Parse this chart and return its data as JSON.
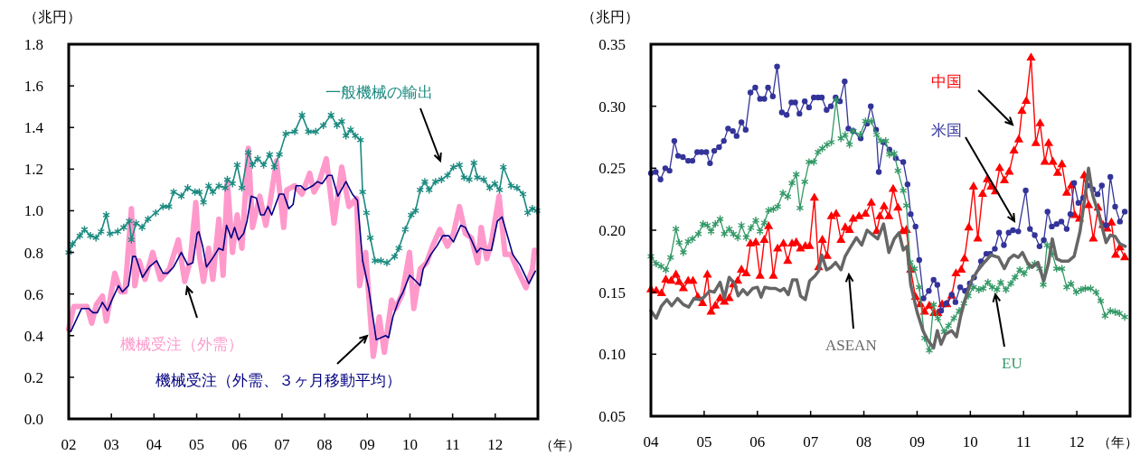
{
  "chart_data": [
    {
      "type": "line",
      "ylabel": "（兆円）",
      "xlabel": "（年）",
      "xlim": [
        2002,
        2013
      ],
      "ylim": [
        0,
        1.8
      ],
      "xticks": [
        {
          "value": 2002,
          "label": "02"
        },
        {
          "value": 2003,
          "label": "03"
        },
        {
          "value": 2004,
          "label": "04"
        },
        {
          "value": 2005,
          "label": "05"
        },
        {
          "value": 2006,
          "label": "06"
        },
        {
          "value": 2007,
          "label": "07"
        },
        {
          "value": 2008,
          "label": "08"
        },
        {
          "value": 2009,
          "label": "09"
        },
        {
          "value": 2010,
          "label": "10"
        },
        {
          "value": 2011,
          "label": "11"
        },
        {
          "value": 2012,
          "label": "12"
        }
      ],
      "yticks": [
        {
          "value": 0,
          "label": "0.0"
        },
        0.2,
        0.4,
        0.6,
        0.8,
        {
          "value": 1,
          "label": "1.0"
        },
        1.2,
        1.4,
        1.6,
        1.8
      ],
      "series": [
        {
          "name": "機械受注（外需）",
          "color": "#ff99cc",
          "marker": "none",
          "x": [
            2002.0,
            2002.12,
            2002.26,
            2002.43,
            2002.54,
            2002.65,
            2002.79,
            2002.88,
            2003.08,
            2003.22,
            2003.32,
            2003.47,
            2003.55,
            2003.65,
            2003.79,
            2003.97,
            2004.15,
            2004.36,
            2004.57,
            2004.72,
            2004.85,
            2004.98,
            2005.06,
            2005.16,
            2005.28,
            2005.38,
            2005.52,
            2005.62,
            2005.72,
            2005.84,
            2005.95,
            2006.06,
            2006.21,
            2006.31,
            2006.48,
            2006.62,
            2006.72,
            2006.87,
            2007.04,
            2007.11,
            2007.3,
            2007.47,
            2007.65,
            2007.75,
            2007.86,
            2008.04,
            2008.22,
            2008.4,
            2008.57,
            2008.75,
            2008.82,
            2008.96,
            2009.14,
            2009.28,
            2009.4,
            2009.57,
            2009.66,
            2009.82,
            2009.99,
            2010.09,
            2010.24,
            2010.39,
            2010.53,
            2010.7,
            2010.88,
            2011.02,
            2011.16,
            2011.3,
            2011.44,
            2011.59,
            2011.67,
            2011.8,
            2011.91,
            2012.09,
            2012.23,
            2012.37,
            2012.51,
            2012.72,
            2012.87,
            2012.92
          ],
          "values": [
            0.43,
            0.54,
            0.54,
            0.54,
            0.46,
            0.55,
            0.59,
            0.47,
            0.7,
            0.61,
            0.61,
            1.01,
            0.64,
            0.76,
            0.67,
            0.8,
            0.67,
            0.72,
            0.86,
            0.66,
            0.76,
            1.04,
            0.79,
            0.66,
            0.82,
            0.67,
            0.96,
            0.69,
            1.14,
            0.8,
            0.98,
            0.82,
            1.3,
            0.92,
            1.07,
            0.93,
            1.04,
            1.24,
            0.92,
            1.1,
            1.12,
            1.08,
            1.18,
            1.09,
            1.13,
            1.25,
            0.94,
            1.21,
            1.02,
            1.06,
            0.64,
            0.8,
            0.3,
            0.49,
            0.32,
            0.57,
            0.53,
            0.6,
            0.8,
            0.53,
            0.72,
            0.75,
            0.83,
            0.91,
            0.83,
            0.89,
            1.02,
            0.89,
            0.87,
            0.75,
            0.92,
            0.77,
            0.85,
            1.07,
            0.79,
            0.79,
            0.72,
            0.63,
            0.72,
            0.81
          ]
        },
        {
          "name": "機械受注（外需、３ヶ月移動平均）",
          "color": "#000080",
          "marker": "none",
          "x": [
            2002.0,
            2002.05,
            2002.3,
            2002.47,
            2002.57,
            2002.67,
            2002.79,
            2002.91,
            2003.01,
            2003.17,
            2003.26,
            2003.4,
            2003.5,
            2003.57,
            2003.73,
            2003.89,
            2004.06,
            2004.21,
            2004.32,
            2004.46,
            2004.64,
            2004.79,
            2004.91,
            2005.01,
            2005.05,
            2005.14,
            2005.23,
            2005.4,
            2005.52,
            2005.62,
            2005.7,
            2005.81,
            2005.89,
            2005.98,
            2006.1,
            2006.18,
            2006.28,
            2006.4,
            2006.5,
            2006.58,
            2006.67,
            2006.76,
            2006.94,
            2007.04,
            2007.16,
            2007.26,
            2007.33,
            2007.44,
            2007.54,
            2007.72,
            2007.83,
            2007.94,
            2008.08,
            2008.17,
            2008.31,
            2008.5,
            2008.65,
            2008.77,
            2008.89,
            2009.03,
            2009.21,
            2009.43,
            2009.5,
            2009.6,
            2009.74,
            2009.84,
            2009.99,
            2010.1,
            2010.24,
            2010.31,
            2010.49,
            2010.63,
            2010.77,
            2010.91,
            2011.02,
            2011.19,
            2011.3,
            2011.44,
            2011.57,
            2011.65,
            2011.8,
            2011.91,
            2012.05,
            2012.16,
            2012.3,
            2012.41,
            2012.58,
            2012.79,
            2012.94
          ],
          "values": [
            0.42,
            0.42,
            0.53,
            0.53,
            0.51,
            0.51,
            0.56,
            0.52,
            0.57,
            0.64,
            0.61,
            0.64,
            0.78,
            0.78,
            0.68,
            0.73,
            0.76,
            0.7,
            0.7,
            0.73,
            0.8,
            0.74,
            0.75,
            0.89,
            0.9,
            0.83,
            0.73,
            0.78,
            0.82,
            0.81,
            0.93,
            0.87,
            0.92,
            0.86,
            0.89,
            0.95,
            1.07,
            1.06,
            0.98,
            0.98,
            1.02,
            0.98,
            1.08,
            1.08,
            1.01,
            1.03,
            1.12,
            1.12,
            1.1,
            1.12,
            1.14,
            1.13,
            1.17,
            1.17,
            1.07,
            1.14,
            1.08,
            1.05,
            0.76,
            0.63,
            0.38,
            0.4,
            0.39,
            0.49,
            0.57,
            0.61,
            0.69,
            0.67,
            0.64,
            0.72,
            0.79,
            0.83,
            0.88,
            0.88,
            0.85,
            0.93,
            0.92,
            0.86,
            0.8,
            0.82,
            0.81,
            0.81,
            0.95,
            0.97,
            0.87,
            0.79,
            0.74,
            0.65,
            0.71
          ]
        },
        {
          "name": "一般機械の輸出",
          "color": "#1a8a80",
          "marker": "cross",
          "x": [
            2002.0,
            2002.09,
            2002.26,
            2002.37,
            2002.51,
            2002.64,
            2002.76,
            2002.88,
            2002.97,
            2003.15,
            2003.29,
            2003.42,
            2003.47,
            2003.58,
            2003.72,
            2003.86,
            2004.04,
            2004.21,
            2004.35,
            2004.46,
            2004.64,
            2004.79,
            2004.96,
            2005.06,
            2005.16,
            2005.28,
            2005.38,
            2005.52,
            2005.67,
            2005.72,
            2005.84,
            2005.95,
            2006.06,
            2006.21,
            2006.31,
            2006.43,
            2006.57,
            2006.71,
            2006.82,
            2006.94,
            2007.09,
            2007.3,
            2007.47,
            2007.62,
            2007.79,
            2007.97,
            2008.15,
            2008.29,
            2008.4,
            2008.5,
            2008.61,
            2008.72,
            2008.84,
            2008.89,
            2008.98,
            2009.07,
            2009.18,
            2009.32,
            2009.46,
            2009.64,
            2009.74,
            2009.89,
            2010.03,
            2010.13,
            2010.24,
            2010.35,
            2010.45,
            2010.6,
            2010.74,
            2010.88,
            2011.02,
            2011.16,
            2011.27,
            2011.39,
            2011.5,
            2011.58,
            2011.73,
            2011.87,
            2011.99,
            2012.1,
            2012.19,
            2012.37,
            2012.51,
            2012.65,
            2012.76,
            2012.87,
            2012.98
          ],
          "values": [
            0.8,
            0.84,
            0.88,
            0.91,
            0.88,
            0.87,
            0.9,
            0.98,
            0.89,
            0.9,
            0.92,
            0.95,
            0.86,
            0.94,
            0.92,
            0.96,
            0.99,
            1.02,
            1.02,
            1.09,
            1.07,
            1.11,
            1.09,
            1.09,
            1.04,
            1.12,
            1.09,
            1.12,
            1.11,
            1.15,
            1.13,
            1.22,
            1.11,
            1.28,
            1.22,
            1.25,
            1.22,
            1.27,
            1.21,
            1.27,
            1.37,
            1.38,
            1.46,
            1.38,
            1.38,
            1.41,
            1.46,
            1.41,
            1.43,
            1.36,
            1.39,
            1.36,
            1.34,
            1.09,
            0.99,
            0.87,
            0.76,
            0.76,
            0.75,
            0.78,
            0.82,
            0.91,
            0.98,
            1.0,
            1.1,
            1.14,
            1.1,
            1.14,
            1.15,
            1.17,
            1.21,
            1.22,
            1.16,
            1.15,
            1.23,
            1.16,
            1.15,
            1.11,
            1.13,
            1.1,
            1.21,
            1.12,
            1.11,
            1.08,
            0.99,
            1.01,
            1.0
          ]
        }
      ]
    },
    {
      "type": "line",
      "ylabel": "（兆円）",
      "xlabel": "（年）",
      "xlim": [
        2004,
        2013
      ],
      "ylim": [
        0.05,
        0.35
      ],
      "xticks": [
        {
          "value": 2004,
          "label": "04"
        },
        {
          "value": 2005,
          "label": "05"
        },
        {
          "value": 2006,
          "label": "06"
        },
        {
          "value": 2007,
          "label": "07"
        },
        {
          "value": 2008,
          "label": "08"
        },
        {
          "value": 2009,
          "label": "09"
        },
        {
          "value": 2010,
          "label": "10"
        },
        {
          "value": 2011,
          "label": "11"
        },
        {
          "value": 2012,
          "label": "12"
        }
      ],
      "yticks": [
        0.05,
        {
          "value": 0.1,
          "label": "0.10"
        },
        0.15,
        {
          "value": 0.2,
          "label": "0.20"
        },
        0.25,
        {
          "value": 0.3,
          "label": "0.30"
        },
        0.35
      ],
      "series": [
        {
          "name": "中国",
          "color": "#ff0000",
          "marker": "triangle",
          "x": [
            2004.0,
            2004.1,
            2004.2,
            2004.28,
            2004.38,
            2004.47,
            2004.53,
            2004.61,
            2004.7,
            2004.79,
            2004.88,
            2004.97,
            2005.06,
            2005.13,
            2005.21,
            2005.3,
            2005.38,
            2005.47,
            2005.55,
            2005.63,
            2005.7,
            2005.79,
            2005.87,
            2005.97,
            2006.05,
            2006.13,
            2006.21,
            2006.3,
            2006.38,
            2006.49,
            2006.57,
            2006.65,
            2006.73,
            2006.81,
            2006.9,
            2006.98,
            2007.07,
            2007.15,
            2007.22,
            2007.31,
            2007.39,
            2007.48,
            2007.57,
            2007.65,
            2007.73,
            2007.8,
            2007.91,
            2008.03,
            2008.14,
            2008.24,
            2008.3,
            2008.38,
            2008.47,
            2008.55,
            2008.64,
            2008.73,
            2008.8,
            2008.88,
            2008.97,
            2009.06,
            2009.14,
            2009.23,
            2009.32,
            2009.39,
            2009.47,
            2009.56,
            2009.65,
            2009.73,
            2009.83,
            2009.89,
            2009.97,
            2010.06,
            2010.14,
            2010.23,
            2010.32,
            2010.39,
            2010.47,
            2010.55,
            2010.64,
            2010.73,
            2010.82,
            2010.91,
            2010.97,
            2011.05,
            2011.14,
            2011.23,
            2011.31,
            2011.4,
            2011.47,
            2011.55,
            2011.64,
            2011.72,
            2011.81,
            2011.9,
            2011.96,
            2012.05,
            2012.14,
            2012.22,
            2012.31,
            2012.4,
            2012.49,
            2012.57,
            2012.65,
            2012.73,
            2012.81,
            2012.9
          ],
          "values": [
            0.152,
            0.151,
            0.149,
            0.16,
            0.159,
            0.164,
            0.158,
            0.153,
            0.159,
            0.159,
            0.146,
            0.141,
            0.164,
            0.134,
            0.139,
            0.145,
            0.142,
            0.145,
            0.156,
            0.159,
            0.168,
            0.165,
            0.189,
            0.19,
            0.163,
            0.192,
            0.203,
            0.163,
            0.185,
            0.189,
            0.175,
            0.189,
            0.19,
            0.185,
            0.187,
            0.187,
            0.226,
            0.17,
            0.192,
            0.179,
            0.211,
            0.213,
            0.192,
            0.202,
            0.2,
            0.209,
            0.211,
            0.213,
            0.222,
            0.199,
            0.211,
            0.219,
            0.211,
            0.233,
            0.218,
            0.199,
            0.2,
            0.168,
            0.146,
            0.14,
            0.134,
            0.139,
            0.133,
            0.133,
            0.14,
            0.14,
            0.147,
            0.165,
            0.168,
            0.177,
            0.202,
            0.235,
            0.193,
            0.229,
            0.241,
            0.235,
            0.231,
            0.25,
            0.24,
            0.247,
            0.264,
            0.273,
            0.296,
            0.304,
            0.339,
            0.27,
            0.286,
            0.255,
            0.27,
            0.255,
            0.246,
            0.253,
            0.23,
            0.236,
            0.212,
            0.209,
            0.244,
            0.22,
            0.193,
            0.218,
            0.204,
            0.201,
            0.206,
            0.18,
            0.186,
            0.178
          ]
        },
        {
          "name": "米国",
          "color": "#333399",
          "marker": "circle",
          "x": [
            2004.0,
            2004.09,
            2004.18,
            2004.27,
            2004.35,
            2004.44,
            2004.51,
            2004.6,
            2004.7,
            2004.78,
            2004.87,
            2004.95,
            2005.04,
            2005.11,
            2005.19,
            2005.28,
            2005.37,
            2005.45,
            2005.54,
            2005.61,
            2005.7,
            2005.78,
            2005.87,
            2005.96,
            2006.05,
            2006.13,
            2006.2,
            2006.29,
            2006.37,
            2006.46,
            2006.55,
            2006.64,
            2006.71,
            2006.79,
            2006.89,
            2006.97,
            2007.06,
            2007.14,
            2007.21,
            2007.3,
            2007.38,
            2007.47,
            2007.55,
            2007.64,
            2007.71,
            2007.8,
            2007.94,
            2008.06,
            2008.13,
            2008.23,
            2008.28,
            2008.37,
            2008.48,
            2008.6,
            2008.74,
            2008.82,
            2008.88,
            2008.97,
            2009.04,
            2009.12,
            2009.22,
            2009.31,
            2009.38,
            2009.45,
            2009.55,
            2009.65,
            2009.72,
            2009.81,
            2009.9,
            2009.99,
            2010.07,
            2010.2,
            2010.3,
            2010.37,
            2010.46,
            2010.54,
            2010.63,
            2010.72,
            2010.8,
            2010.9,
            2011.04,
            2011.12,
            2011.21,
            2011.3,
            2011.38,
            2011.45,
            2011.53,
            2011.62,
            2011.71,
            2011.81,
            2011.88,
            2011.95,
            2012.03,
            2012.12,
            2012.2,
            2012.3,
            2012.39,
            2012.47,
            2012.55,
            2012.63,
            2012.72,
            2012.81,
            2012.9
          ],
          "values": [
            0.246,
            0.247,
            0.241,
            0.25,
            0.248,
            0.272,
            0.26,
            0.259,
            0.256,
            0.256,
            0.263,
            0.263,
            0.263,
            0.254,
            0.264,
            0.267,
            0.272,
            0.282,
            0.28,
            0.276,
            0.287,
            0.281,
            0.311,
            0.315,
            0.306,
            0.306,
            0.315,
            0.308,
            0.332,
            0.295,
            0.293,
            0.303,
            0.303,
            0.294,
            0.304,
            0.299,
            0.307,
            0.307,
            0.307,
            0.297,
            0.3,
            0.307,
            0.304,
            0.32,
            0.282,
            0.28,
            0.274,
            0.286,
            0.3,
            0.281,
            0.247,
            0.271,
            0.265,
            0.258,
            0.255,
            0.237,
            0.213,
            0.203,
            0.176,
            0.145,
            0.151,
            0.16,
            0.156,
            0.135,
            0.141,
            0.148,
            0.142,
            0.154,
            0.151,
            0.157,
            0.162,
            0.175,
            0.181,
            0.181,
            0.185,
            0.198,
            0.188,
            0.198,
            0.2,
            0.199,
            0.232,
            0.201,
            0.196,
            0.187,
            0.192,
            0.215,
            0.203,
            0.205,
            0.207,
            0.201,
            0.213,
            0.238,
            0.222,
            0.226,
            0.236,
            0.233,
            0.229,
            0.236,
            0.204,
            0.243,
            0.219,
            0.207,
            0.215
          ]
        },
        {
          "name": "EU",
          "color": "#339966",
          "marker": "cross",
          "x": [
            2004.0,
            2004.1,
            2004.19,
            2004.28,
            2004.37,
            2004.47,
            2004.53,
            2004.61,
            2004.7,
            2004.78,
            2004.89,
            2004.98,
            2005.06,
            2005.13,
            2005.21,
            2005.3,
            2005.38,
            2005.47,
            2005.55,
            2005.63,
            2005.7,
            2005.79,
            2005.88,
            2005.97,
            2006.05,
            2006.13,
            2006.21,
            2006.3,
            2006.38,
            2006.48,
            2006.57,
            2006.65,
            2006.73,
            2006.8,
            2006.89,
            2006.97,
            2007.06,
            2007.14,
            2007.22,
            2007.31,
            2007.39,
            2007.48,
            2007.57,
            2007.65,
            2007.73,
            2007.8,
            2007.93,
            2008.03,
            2008.14,
            2008.24,
            2008.32,
            2008.41,
            2008.48,
            2008.57,
            2008.64,
            2008.74,
            2008.8,
            2008.87,
            2008.95,
            2009.04,
            2009.14,
            2009.23,
            2009.31,
            2009.39,
            2009.51,
            2009.59,
            2009.69,
            2009.79,
            2009.88,
            2009.96,
            2010.06,
            2010.16,
            2010.24,
            2010.33,
            2010.41,
            2010.5,
            2010.57,
            2010.67,
            2010.76,
            2010.84,
            2010.93,
            2011.01,
            2011.11,
            2011.21,
            2011.3,
            2011.37,
            2011.44,
            2011.54,
            2011.62,
            2011.72,
            2011.81,
            2011.89,
            2011.99,
            2012.08,
            2012.16,
            2012.26,
            2012.36,
            2012.45,
            2012.53,
            2012.63,
            2012.72,
            2012.8,
            2012.9
          ],
          "values": [
            0.179,
            0.173,
            0.171,
            0.168,
            0.178,
            0.201,
            0.19,
            0.182,
            0.191,
            0.193,
            0.197,
            0.205,
            0.204,
            0.199,
            0.205,
            0.209,
            0.197,
            0.201,
            0.197,
            0.194,
            0.204,
            0.194,
            0.202,
            0.208,
            0.199,
            0.206,
            0.216,
            0.217,
            0.219,
            0.23,
            0.227,
            0.238,
            0.245,
            0.218,
            0.239,
            0.255,
            0.255,
            0.263,
            0.266,
            0.269,
            0.271,
            0.305,
            0.274,
            0.277,
            0.269,
            0.28,
            0.277,
            0.288,
            0.288,
            0.277,
            0.272,
            0.272,
            0.261,
            0.262,
            0.248,
            0.232,
            0.22,
            0.174,
            0.169,
            0.154,
            0.113,
            0.103,
            0.14,
            0.129,
            0.118,
            0.123,
            0.129,
            0.135,
            0.141,
            0.147,
            0.154,
            0.152,
            0.153,
            0.158,
            0.154,
            0.152,
            0.158,
            0.152,
            0.157,
            0.162,
            0.168,
            0.165,
            0.171,
            0.173,
            0.169,
            0.156,
            0.188,
            0.181,
            0.169,
            0.169,
            0.154,
            0.157,
            0.15,
            0.152,
            0.153,
            0.153,
            0.15,
            0.143,
            0.131,
            0.135,
            0.134,
            0.133,
            0.13
          ]
        },
        {
          "name": "ASEAN",
          "color": "#666666",
          "marker": "none",
          "x": [
            2004.0,
            2004.1,
            2004.2,
            2004.3,
            2004.39,
            2004.5,
            2004.61,
            2004.71,
            2004.81,
            2004.91,
            2005.0,
            2005.1,
            2005.19,
            2005.3,
            2005.38,
            2005.47,
            2005.57,
            2005.64,
            2005.73,
            2005.81,
            2005.91,
            2006.0,
            2006.07,
            2006.14,
            2006.24,
            2006.34,
            2006.43,
            2006.5,
            2006.58,
            2006.66,
            2006.74,
            2006.81,
            2006.9,
            2006.98,
            2007.08,
            2007.15,
            2007.21,
            2007.3,
            2007.38,
            2007.47,
            2007.57,
            2007.65,
            2007.73,
            2007.86,
            2007.96,
            2008.06,
            2008.17,
            2008.26,
            2008.37,
            2008.47,
            2008.57,
            2008.66,
            2008.74,
            2008.81,
            2008.88,
            2009.0,
            2009.11,
            2009.19,
            2009.31,
            2009.38,
            2009.45,
            2009.53,
            2009.65,
            2009.74,
            2009.82,
            2009.9,
            2010.02,
            2010.13,
            2010.26,
            2010.39,
            2010.53,
            2010.64,
            2010.73,
            2010.82,
            2010.9,
            2010.98,
            2011.07,
            2011.16,
            2011.27,
            2011.38,
            2011.47,
            2011.54,
            2011.62,
            2011.72,
            2011.84,
            2011.95,
            2012.06,
            2012.15,
            2012.22,
            2012.3,
            2012.41,
            2012.55,
            2012.63,
            2012.72,
            2012.81,
            2012.91
          ],
          "values": [
            0.135,
            0.129,
            0.139,
            0.144,
            0.139,
            0.145,
            0.14,
            0.138,
            0.145,
            0.144,
            0.146,
            0.151,
            0.15,
            0.158,
            0.145,
            0.162,
            0.157,
            0.147,
            0.152,
            0.148,
            0.153,
            0.154,
            0.146,
            0.154,
            0.153,
            0.153,
            0.151,
            0.153,
            0.148,
            0.16,
            0.16,
            0.147,
            0.144,
            0.159,
            0.163,
            0.167,
            0.18,
            0.168,
            0.17,
            0.174,
            0.168,
            0.179,
            0.185,
            0.194,
            0.188,
            0.2,
            0.196,
            0.193,
            0.205,
            0.182,
            0.193,
            0.198,
            0.184,
            0.187,
            0.156,
            0.134,
            0.119,
            0.112,
            0.105,
            0.119,
            0.108,
            0.116,
            0.119,
            0.114,
            0.131,
            0.144,
            0.159,
            0.167,
            0.174,
            0.18,
            0.178,
            0.169,
            0.177,
            0.18,
            0.178,
            0.182,
            0.174,
            0.17,
            0.174,
            0.159,
            0.174,
            0.193,
            0.177,
            0.175,
            0.175,
            0.179,
            0.199,
            0.226,
            0.25,
            0.228,
            0.213,
            0.19,
            0.196,
            0.195,
            0.189,
            0.187
          ]
        }
      ]
    }
  ]
}
